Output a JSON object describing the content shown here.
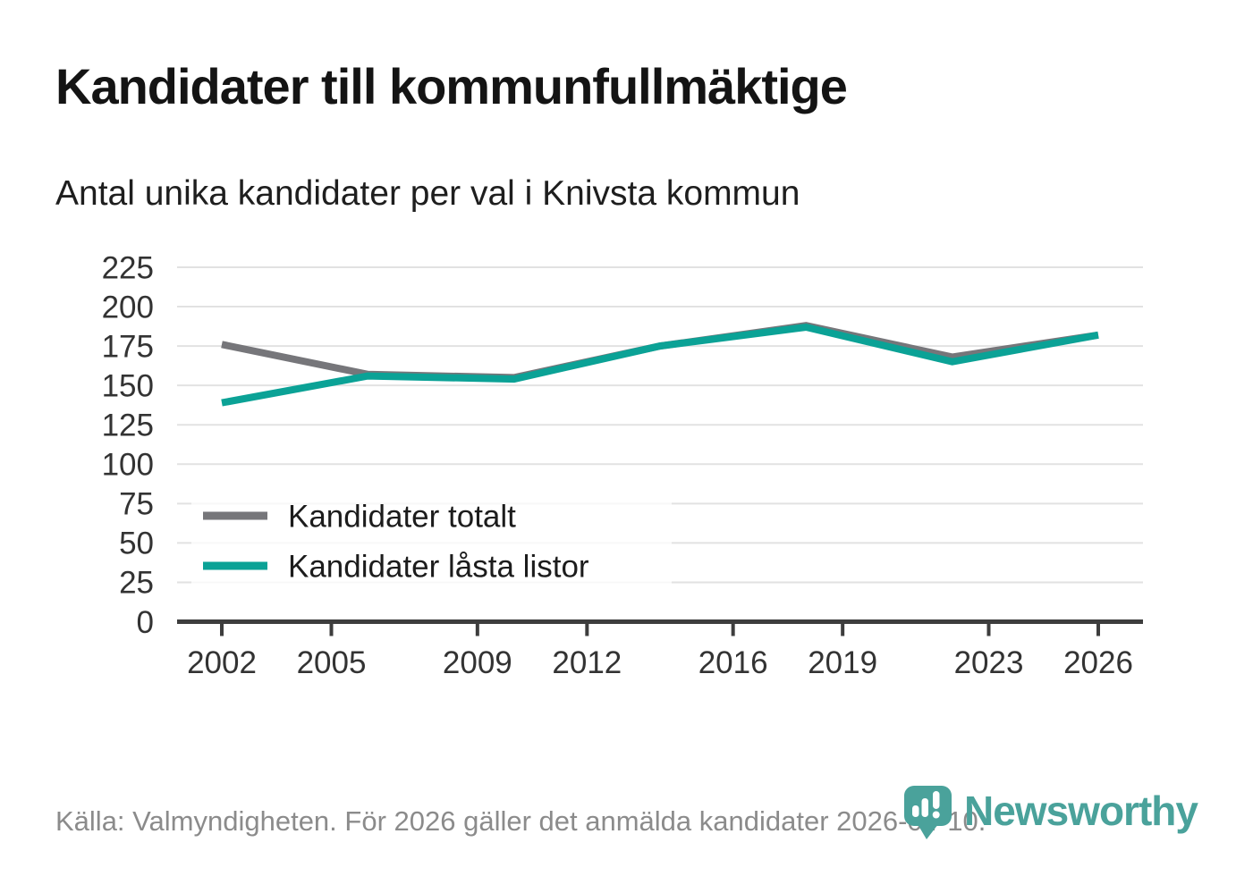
{
  "title": "Kandidater till kommunfullmäktige",
  "subtitle": "Antal unika kandidater per val i Knivsta kommun",
  "source": "Källa: Valmyndigheten. För 2026 gäller det anmälda kandidater 2026-04-10.",
  "branding": {
    "wordmark": "Newsworthy",
    "logo_icon": "newsworthy-pin-barchart-icon",
    "brand_color": "#4AA29B"
  },
  "chart_data": {
    "type": "line",
    "title": "Kandidater till kommunfullmäktige",
    "subtitle": "Antal unika kandidater per val i Knivsta kommun",
    "xlabel": "",
    "ylabel": "",
    "x": [
      2002,
      2006,
      2010,
      2014,
      2018,
      2022,
      2026
    ],
    "series": [
      {
        "name": "Kandidater totalt",
        "color": "#76767A",
        "values": [
          176,
          157,
          155,
          175,
          188,
          168,
          182
        ]
      },
      {
        "name": "Kandidater låsta listor",
        "color": "#0BA296",
        "values": [
          139,
          156,
          154,
          175,
          187,
          165,
          182
        ]
      }
    ],
    "xlim": [
      2002,
      2026
    ],
    "ylim": [
      0,
      225
    ],
    "yticks": [
      0,
      25,
      50,
      75,
      100,
      125,
      150,
      175,
      200,
      225
    ],
    "xtick_values": [
      2002,
      2005,
      2009,
      2012,
      2016,
      2019,
      2023,
      2026
    ],
    "xtick_labels": [
      "2002",
      "2005",
      "2009",
      "2012",
      "2016",
      "2019",
      "2023",
      "2026"
    ],
    "grid": true,
    "legend_position": "inside-lower-left",
    "colors": {
      "grid": "#E2E2E2",
      "axis": "#3D3D3D",
      "tick_label": "#333333",
      "legend_text": "#1C1C1C"
    }
  }
}
